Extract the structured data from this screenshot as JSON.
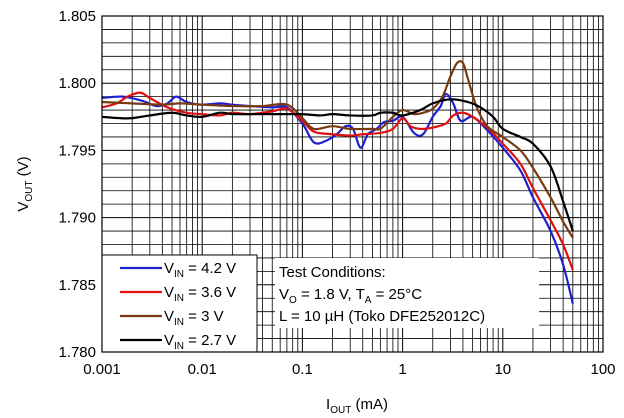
{
  "chart_data": {
    "type": "line",
    "title": "",
    "x_axis": {
      "label": "I",
      "label_subscript": "OUT",
      "label_suffix": " (mA)",
      "scale": "log",
      "range": [
        0.001,
        100
      ],
      "tick_values": [
        0.001,
        0.01,
        0.1,
        1,
        10,
        100
      ],
      "tick_labels": [
        "0.001",
        "0.01",
        "0.1",
        "1",
        "10",
        "100"
      ]
    },
    "y_axis": {
      "label": "V",
      "label_subscript": "OUT",
      "label_suffix": " (V)",
      "scale": "linear",
      "range": [
        1.78,
        1.805
      ],
      "tick_values": [
        1.78,
        1.785,
        1.79,
        1.795,
        1.8,
        1.805
      ],
      "tick_labels": [
        "1.780",
        "1.785",
        "1.790",
        "1.795",
        "1.800",
        "1.805"
      ]
    },
    "grid": true,
    "legend_position": "bottom-left",
    "series": [
      {
        "name": "V_IN = 4.2 V",
        "label_main": "V",
        "label_sub": "IN",
        "label_rest": " = 4.2 V",
        "color": "#1f1fd0",
        "points": [
          [
            0.001,
            1.7989
          ],
          [
            0.0016,
            1.799
          ],
          [
            0.0025,
            1.7987
          ],
          [
            0.0035,
            1.7983
          ],
          [
            0.0045,
            1.7985
          ],
          [
            0.0055,
            1.799
          ],
          [
            0.007,
            1.7986
          ],
          [
            0.01,
            1.7984
          ],
          [
            0.015,
            1.7985
          ],
          [
            0.02,
            1.7984
          ],
          [
            0.03,
            1.7983
          ],
          [
            0.05,
            1.7982
          ],
          [
            0.07,
            1.7982
          ],
          [
            0.1,
            1.797
          ],
          [
            0.13,
            1.7956
          ],
          [
            0.17,
            1.7957
          ],
          [
            0.22,
            1.7962
          ],
          [
            0.27,
            1.7968
          ],
          [
            0.32,
            1.7966
          ],
          [
            0.38,
            1.7952
          ],
          [
            0.45,
            1.7962
          ],
          [
            0.55,
            1.7966
          ],
          [
            0.65,
            1.7971
          ],
          [
            0.8,
            1.7972
          ],
          [
            1.0,
            1.7975
          ],
          [
            1.3,
            1.7963
          ],
          [
            1.6,
            1.7962
          ],
          [
            2.0,
            1.7975
          ],
          [
            2.4,
            1.7983
          ],
          [
            2.7,
            1.7992
          ],
          [
            3.2,
            1.7985
          ],
          [
            3.8,
            1.7972
          ],
          [
            5,
            1.7975
          ],
          [
            7,
            1.7965
          ],
          [
            10,
            1.7952
          ],
          [
            15,
            1.7935
          ],
          [
            20,
            1.7915
          ],
          [
            30,
            1.789
          ],
          [
            40,
            1.7865
          ],
          [
            50,
            1.7836
          ]
        ]
      },
      {
        "name": "V_IN = 3.6 V",
        "label_main": "V",
        "label_sub": "IN",
        "label_rest": " = 3.6 V",
        "color": "#e01010",
        "points": [
          [
            0.001,
            1.7982
          ],
          [
            0.0014,
            1.7985
          ],
          [
            0.0018,
            1.799
          ],
          [
            0.0024,
            1.7993
          ],
          [
            0.003,
            1.7989
          ],
          [
            0.0045,
            1.7982
          ],
          [
            0.007,
            1.7978
          ],
          [
            0.01,
            1.7977
          ],
          [
            0.015,
            1.7976
          ],
          [
            0.02,
            1.7978
          ],
          [
            0.03,
            1.7977
          ],
          [
            0.05,
            1.7979
          ],
          [
            0.07,
            1.7981
          ],
          [
            0.1,
            1.7972
          ],
          [
            0.13,
            1.7964
          ],
          [
            0.2,
            1.7962
          ],
          [
            0.3,
            1.7961
          ],
          [
            0.4,
            1.7962
          ],
          [
            0.6,
            1.7963
          ],
          [
            0.8,
            1.7966
          ],
          [
            1.0,
            1.7974
          ],
          [
            1.2,
            1.7968
          ],
          [
            1.5,
            1.7966
          ],
          [
            2.0,
            1.7967
          ],
          [
            2.7,
            1.797
          ],
          [
            3.2,
            1.7976
          ],
          [
            4,
            1.7978
          ],
          [
            5,
            1.7975
          ],
          [
            7,
            1.7967
          ],
          [
            10,
            1.7955
          ],
          [
            15,
            1.794
          ],
          [
            20,
            1.7922
          ],
          [
            30,
            1.7898
          ],
          [
            40,
            1.788
          ],
          [
            50,
            1.7861
          ]
        ]
      },
      {
        "name": "V_IN = 3 V",
        "label_main": "V",
        "label_sub": "IN",
        "label_rest": " = 3 V",
        "color": "#7a3a10",
        "points": [
          [
            0.001,
            1.7986
          ],
          [
            0.002,
            1.7985
          ],
          [
            0.004,
            1.7984
          ],
          [
            0.006,
            1.7985
          ],
          [
            0.01,
            1.7984
          ],
          [
            0.02,
            1.7983
          ],
          [
            0.04,
            1.7983
          ],
          [
            0.07,
            1.7984
          ],
          [
            0.1,
            1.7974
          ],
          [
            0.13,
            1.7966
          ],
          [
            0.2,
            1.7968
          ],
          [
            0.3,
            1.7966
          ],
          [
            0.5,
            1.7966
          ],
          [
            0.6,
            1.7966
          ],
          [
            0.8,
            1.7975
          ],
          [
            1.0,
            1.798
          ],
          [
            1.3,
            1.7977
          ],
          [
            1.6,
            1.7978
          ],
          [
            2.0,
            1.7981
          ],
          [
            2.5,
            1.799
          ],
          [
            3.0,
            1.8005
          ],
          [
            3.5,
            1.8015
          ],
          [
            4.0,
            1.8015
          ],
          [
            4.5,
            1.8003
          ],
          [
            5.5,
            1.7982
          ],
          [
            7,
            1.7968
          ],
          [
            10,
            1.796
          ],
          [
            15,
            1.795
          ],
          [
            20,
            1.7937
          ],
          [
            30,
            1.7915
          ],
          [
            40,
            1.7897
          ],
          [
            50,
            1.7885
          ]
        ]
      },
      {
        "name": "V_IN = 2.7 V",
        "label_main": "V",
        "label_sub": "IN",
        "label_rest": " = 2.7 V",
        "color": "#000000",
        "points": [
          [
            0.001,
            1.7975
          ],
          [
            0.0015,
            1.7974
          ],
          [
            0.002,
            1.7974
          ],
          [
            0.003,
            1.7976
          ],
          [
            0.005,
            1.7978
          ],
          [
            0.007,
            1.7976
          ],
          [
            0.01,
            1.7975
          ],
          [
            0.015,
            1.7978
          ],
          [
            0.02,
            1.7977
          ],
          [
            0.03,
            1.7977
          ],
          [
            0.05,
            1.7977
          ],
          [
            0.07,
            1.7977
          ],
          [
            0.1,
            1.7977
          ],
          [
            0.15,
            1.7976
          ],
          [
            0.2,
            1.7977
          ],
          [
            0.3,
            1.7976
          ],
          [
            0.5,
            1.7976
          ],
          [
            0.6,
            1.7978
          ],
          [
            0.8,
            1.7978
          ],
          [
            1.0,
            1.7976
          ],
          [
            1.5,
            1.798
          ],
          [
            2.0,
            1.7985
          ],
          [
            3.0,
            1.7988
          ],
          [
            4.5,
            1.7986
          ],
          [
            6,
            1.7982
          ],
          [
            8,
            1.7975
          ],
          [
            10,
            1.7966
          ],
          [
            15,
            1.796
          ],
          [
            20,
            1.7955
          ],
          [
            30,
            1.7938
          ],
          [
            40,
            1.7912
          ],
          [
            50,
            1.789
          ]
        ]
      }
    ],
    "annotation": {
      "line1": "Test Conditions:",
      "line2_a": "V",
      "line2_a_sub": "O",
      "line2_b": " = 1.8 V, T",
      "line2_b_sub": "A",
      "line2_c": " = 25°C",
      "line3": "L = 10 µH (Toko DFE252012C)"
    }
  }
}
